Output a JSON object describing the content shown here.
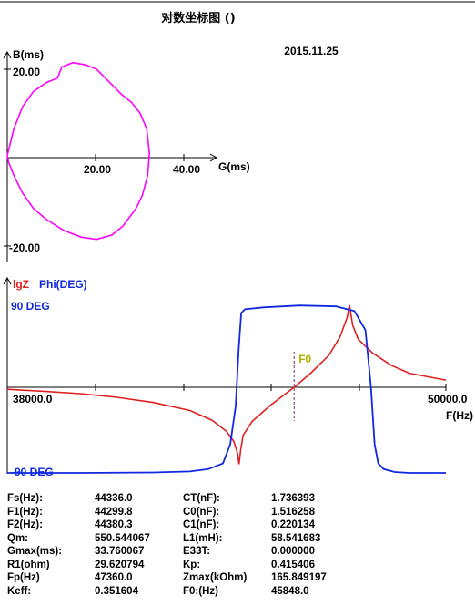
{
  "title": "对数坐标图 ()",
  "date": "2015.11.25",
  "colors": {
    "admittance": "#ff00ff",
    "impedance": "#e02020",
    "phase": "#1028e0",
    "f0": "#b0b000",
    "axis": "#000000"
  },
  "chart_data": [
    {
      "type": "line",
      "name": "admittance-circle",
      "xlabel": "G(ms)",
      "ylabel": "B(ms)",
      "xticks": [
        "20.00",
        "40.00"
      ],
      "yticks": [
        "20.00",
        "-20.00"
      ],
      "xlim": [
        0,
        48
      ],
      "ylim": [
        -24,
        24
      ],
      "x": [
        0.0,
        1.5,
        3.5,
        6.0,
        9.0,
        11.5,
        12.5,
        15.0,
        18.0,
        20.5,
        23.0,
        26.0,
        28.5,
        30.5,
        32.0,
        32.6,
        32.2,
        31.0,
        29.5,
        28.0,
        26.5,
        24.0,
        20.5,
        17.0,
        13.0,
        9.0,
        6.0,
        3.5,
        1.5,
        0.3,
        0.0
      ],
      "y": [
        0.5,
        6.5,
        11.5,
        15.0,
        17.0,
        18.0,
        20.5,
        21.5,
        21.0,
        20.0,
        17.5,
        14.5,
        12.5,
        10.0,
        6.5,
        1.0,
        -4.0,
        -8.5,
        -11.5,
        -13.5,
        -15.5,
        -17.5,
        -18.5,
        -18.0,
        -16.5,
        -14.0,
        -11.5,
        -8.0,
        -4.0,
        -1.0,
        0.5
      ]
    },
    {
      "type": "line",
      "name": "bode",
      "xlabel": "F(Hz)",
      "xlim": [
        38000.0,
        50000.0
      ],
      "xtick_labels": [
        "38000.0",
        "50000.0"
      ],
      "left_axis_label": "lgZ",
      "right_axis_label": "Phi(DEG)",
      "phase_labels": [
        "90 DEG",
        "-90 DEG"
      ],
      "marker_label": "F0",
      "marker_x": 45848.0,
      "series": [
        {
          "name": "lgZ",
          "x": [
            38000,
            39000,
            40000,
            41000,
            42000,
            43000,
            43600,
            44000,
            44200,
            44300,
            44340,
            44380,
            44450,
            44700,
            45200,
            45848,
            46300,
            46800,
            47100,
            47300,
            47360,
            47450,
            47600,
            48000,
            48500,
            49000,
            50000
          ],
          "y": [
            -0.05,
            -0.1,
            -0.16,
            -0.25,
            -0.38,
            -0.58,
            -0.82,
            -1.1,
            -1.35,
            -1.65,
            -1.92,
            -1.6,
            -1.2,
            -0.85,
            -0.45,
            0.0,
            0.35,
            0.8,
            1.25,
            1.75,
            2.05,
            1.55,
            1.2,
            0.85,
            0.55,
            0.35,
            0.18
          ]
        },
        {
          "name": "Phi(DEG)",
          "x": [
            38000,
            40000,
            42000,
            43000,
            43500,
            43900,
            44100,
            44250,
            44330,
            44400,
            44500,
            45000,
            46000,
            47000,
            47500,
            47800,
            47950,
            48050,
            48150,
            48300,
            48600,
            49000,
            50000
          ],
          "y": [
            -90,
            -90,
            -89.5,
            -88.5,
            -86,
            -80,
            -60,
            -20,
            40,
            78,
            82,
            84,
            86,
            85,
            80,
            60,
            0,
            -60,
            -80,
            -86,
            -89,
            -90,
            -90
          ]
        }
      ]
    }
  ],
  "params": [
    {
      "label": "Fs(Hz):",
      "value": "44336.0",
      "label2": "CT(nF):",
      "value2": "1.736393"
    },
    {
      "label": "F1(Hz):",
      "value": "44299.8",
      "label2": "C0(nF):",
      "value2": "1.516258"
    },
    {
      "label": "F2(Hz):",
      "value": "44380.3",
      "label2": "C1(nF):",
      "value2": "0.220134"
    },
    {
      "label": "Qm:",
      "value": "550.544067",
      "label2": "L1(mH):",
      "value2": "58.541683"
    },
    {
      "label": "Gmax(ms):",
      "value": "33.760067",
      "label2": "E33T:",
      "value2": "0.000000"
    },
    {
      "label": "R1(ohm)",
      "value": "29.620794",
      "label2": "Kp:",
      "value2": "0.415406"
    },
    {
      "label": "Fp(Hz)",
      "value": "47360.0",
      "label2": "Zmax(kOhm)",
      "value2": "165.849197"
    },
    {
      "label": "Keff:",
      "value": "0.351604",
      "label2": "F0:(Hz)",
      "value2": "45848.0"
    }
  ]
}
